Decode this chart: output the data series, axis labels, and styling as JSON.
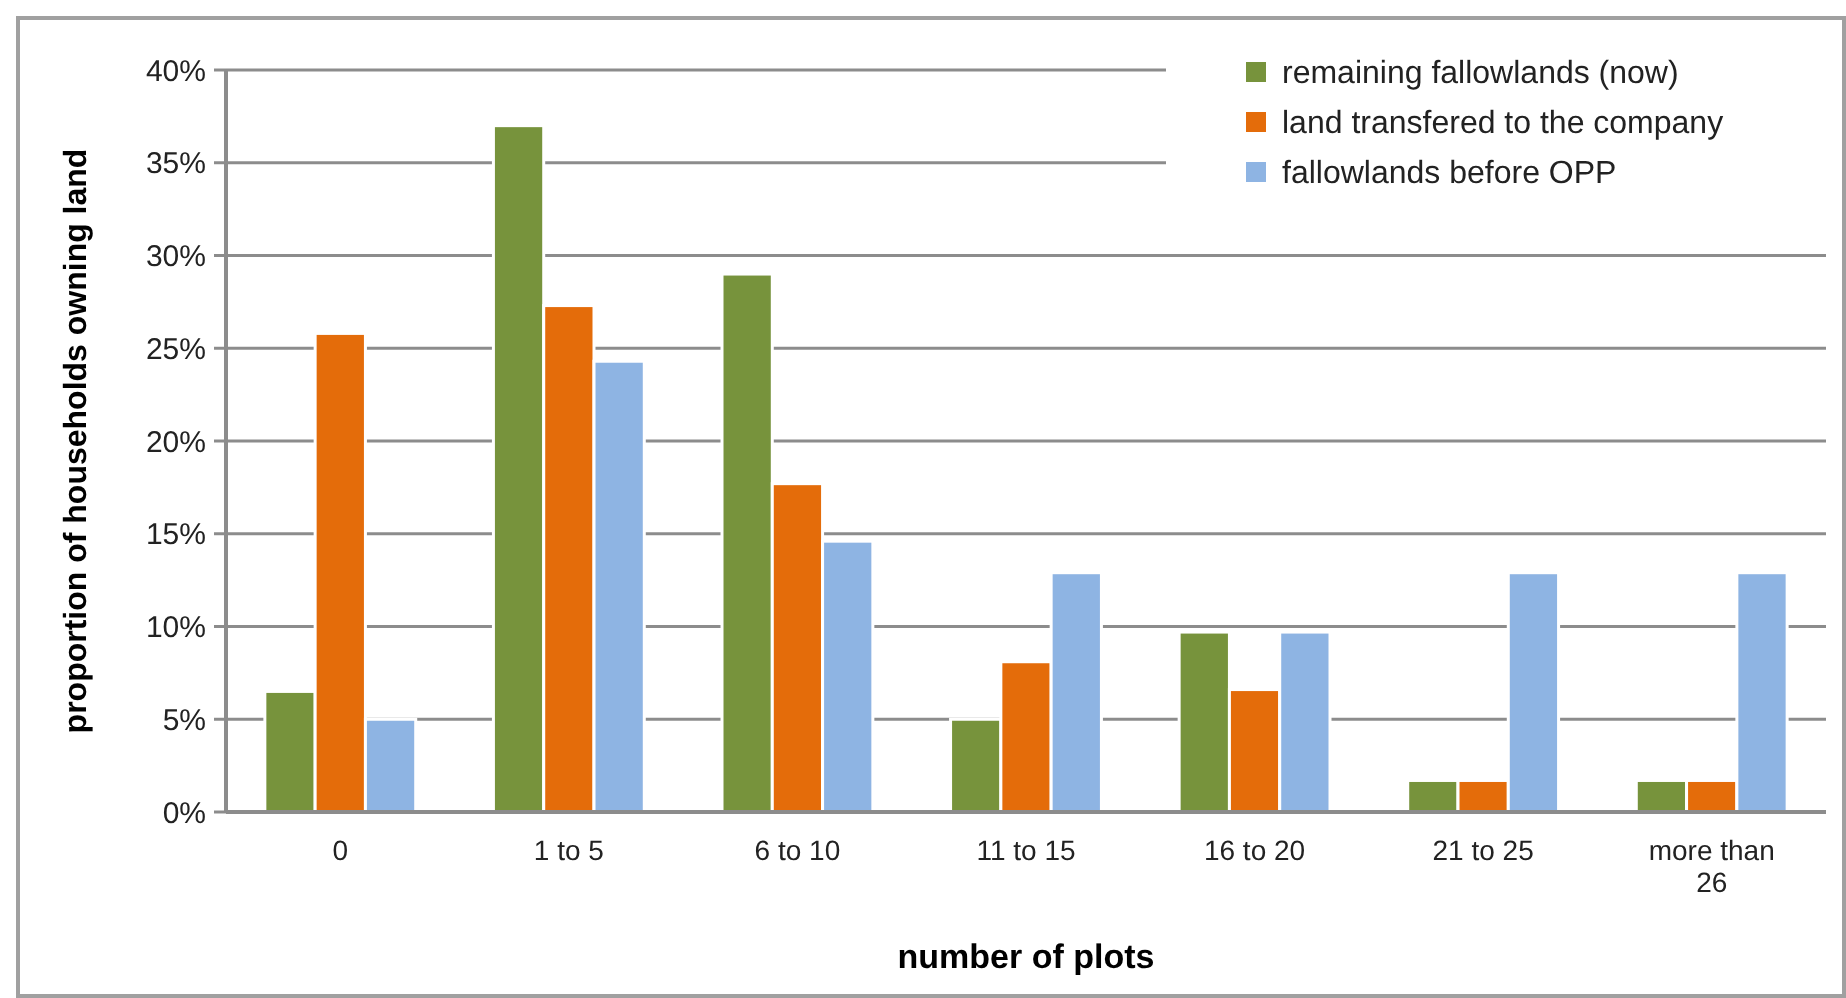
{
  "chart_data": {
    "type": "bar",
    "xlabel": "number of plots",
    "ylabel": "proportion of households owning land",
    "categories": [
      "0",
      "1 to 5",
      "6 to 10",
      "11 to 15",
      "16 to 20",
      "21 to 25",
      "more than 26"
    ],
    "series": [
      {
        "name": "remaining fallowlands (now)",
        "color": "#77933c",
        "values": [
          6.5,
          37,
          29,
          5,
          9.7,
          1.7,
          1.7
        ]
      },
      {
        "name": "land transfered to the company",
        "color": "#e46c0a",
        "values": [
          25.8,
          27.3,
          17.7,
          8.1,
          6.6,
          1.7,
          1.7
        ]
      },
      {
        "name": "fallowlands before OPP",
        "color": "#8eb4e3",
        "values": [
          5,
          24.3,
          14.6,
          12.9,
          9.7,
          12.9,
          12.9
        ]
      }
    ],
    "ylim": [
      0,
      40
    ],
    "yticks": [
      {
        "value": 0,
        "label": "0%"
      },
      {
        "value": 5,
        "label": "5%"
      },
      {
        "value": 10,
        "label": "10%"
      },
      {
        "value": 15,
        "label": "15%"
      },
      {
        "value": 20,
        "label": "20%"
      },
      {
        "value": 25,
        "label": "25%"
      },
      {
        "value": 30,
        "label": "30%"
      },
      {
        "value": 35,
        "label": "35%"
      },
      {
        "value": 40,
        "label": "40%"
      }
    ],
    "grid": "y",
    "legend": "top right"
  }
}
